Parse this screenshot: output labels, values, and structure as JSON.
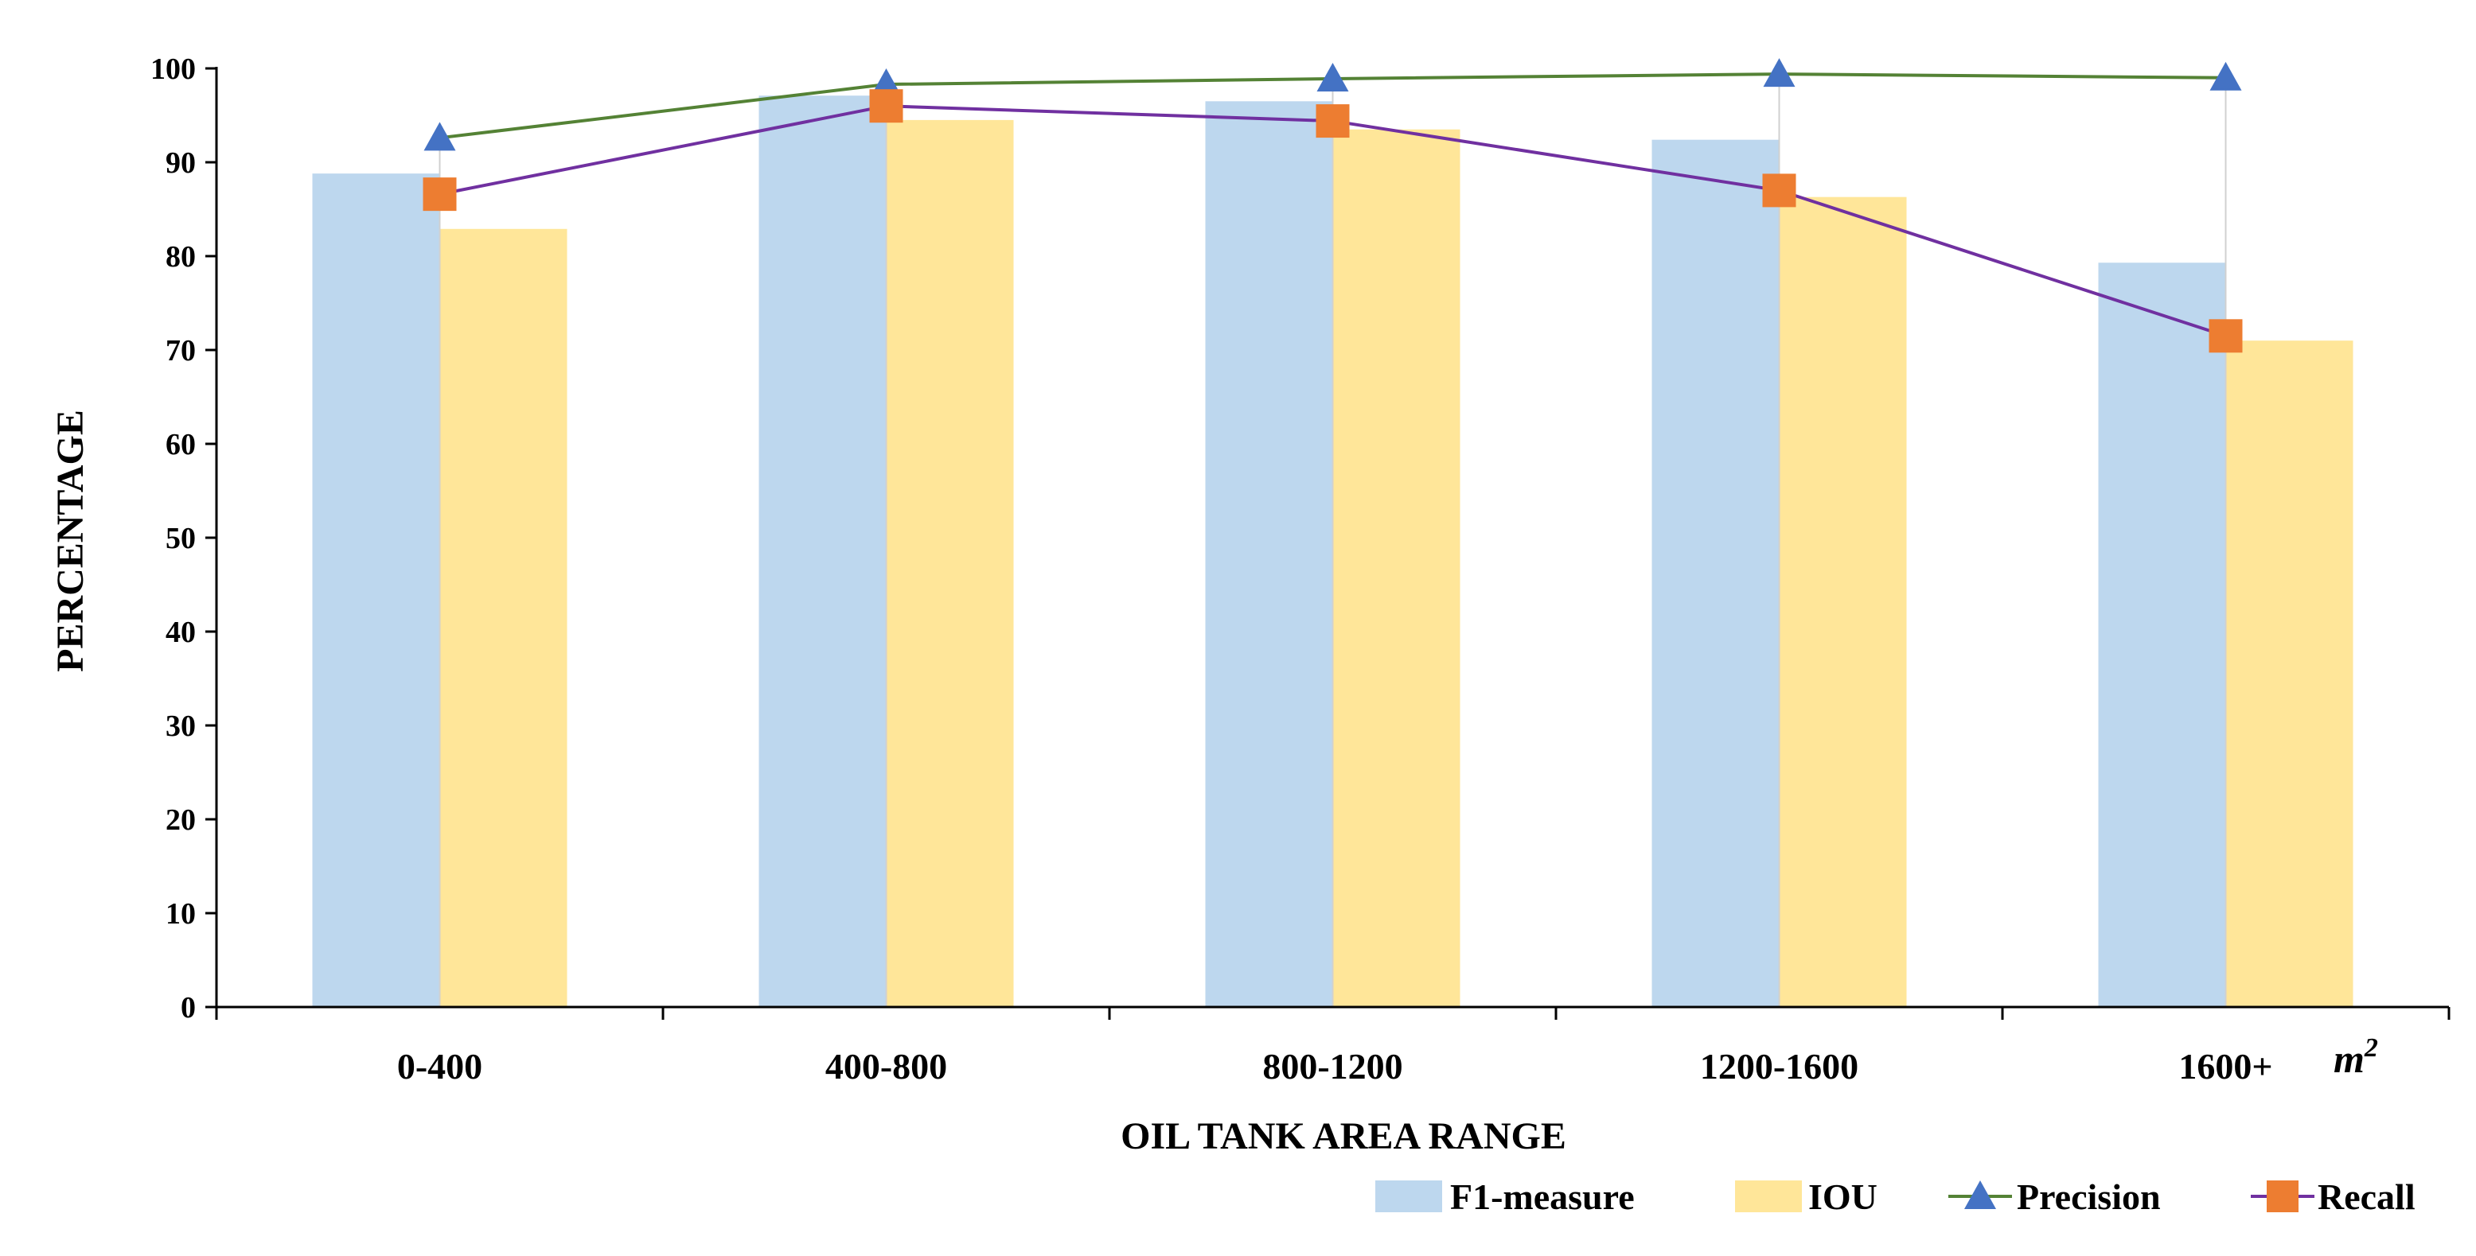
{
  "chart_data": {
    "type": "bar",
    "categories": [
      "0-400",
      "400-800",
      "800-1200",
      "1200-1600",
      "1600+"
    ],
    "series": [
      {
        "name": "F1-measure",
        "kind": "bar",
        "color": "#BDD7EE",
        "values": [
          88.8,
          97.1,
          96.5,
          92.4,
          79.3
        ]
      },
      {
        "name": "IOU",
        "kind": "bar",
        "color": "#FFE699",
        "values": [
          82.9,
          94.5,
          93.5,
          86.3,
          71.0
        ]
      },
      {
        "name": "Precision",
        "kind": "line",
        "marker": "triangle",
        "color": "#548235",
        "marker_color": "#4472C4",
        "values": [
          92.6,
          98.3,
          98.9,
          99.4,
          99.0
        ]
      },
      {
        "name": "Recall",
        "kind": "line",
        "marker": "square",
        "color": "#7030A0",
        "marker_color": "#ED7D31",
        "values": [
          86.6,
          96.0,
          94.4,
          87.0,
          71.5
        ]
      }
    ],
    "xlabel": "OIL TANK AREA RANGE",
    "ylabel": "PERCENTAGE",
    "unit_label": "m",
    "unit_exponent": "2",
    "ylim": [
      0,
      100
    ],
    "yticks": [
      0,
      10,
      20,
      30,
      40,
      50,
      60,
      70,
      80,
      90,
      100
    ],
    "grid": false,
    "legend_position": "bottom-right"
  }
}
